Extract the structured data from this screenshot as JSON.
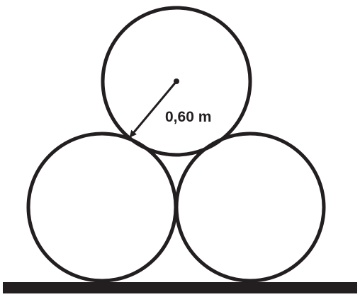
{
  "diagram": {
    "radius_label": "0,60 m",
    "colors": {
      "stroke": "#231f20",
      "background": "#ffffff"
    },
    "shapes": {
      "top_circle": "circle",
      "bottom_left_circle": "circle",
      "bottom_right_circle": "circle",
      "ground": "horizontal-bar"
    }
  }
}
